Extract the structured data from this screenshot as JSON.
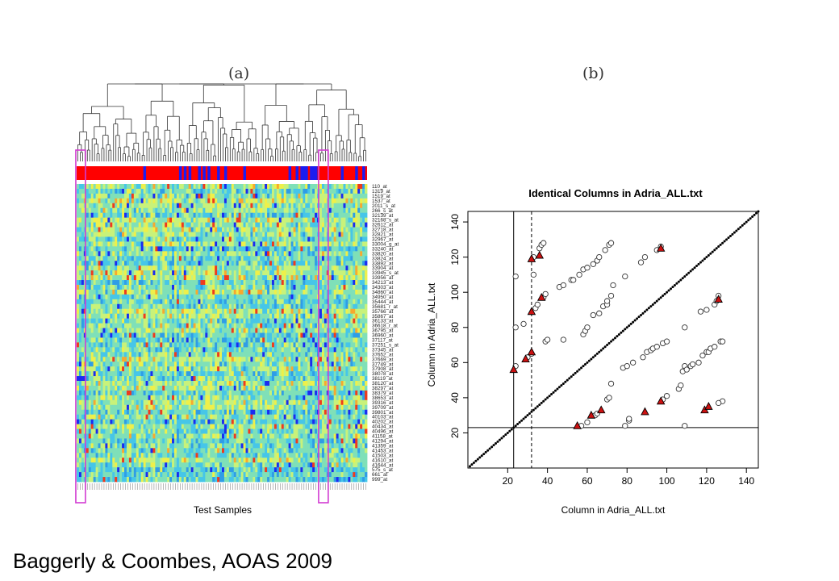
{
  "panels": {
    "a_label": "(a)",
    "b_label": "(b)"
  },
  "citation": "Baggerly & Coombes, AOAS 2009",
  "colors": {
    "class_red": "#ff0000",
    "class_blue": "#1c1cf0",
    "highlight_box": "#d23cd2",
    "triangle_fill": "#cc1111"
  },
  "chart_data": [
    {
      "type": "heatmap",
      "xlabel": "Test Samples",
      "n_samples": 122,
      "highlighted_columns": [
        1,
        103
      ],
      "class_bar_blue_columns": [
        28,
        43,
        45,
        47,
        51,
        53,
        55,
        59,
        62,
        70,
        89,
        92,
        94,
        95,
        96,
        98,
        99,
        100,
        111,
        117,
        120
      ],
      "row_labels": [
        "110_at",
        "1319_at",
        "1519_at",
        "1537_at",
        "2011_s_at",
        "266_s_at",
        "32139_at",
        "32168_s_at",
        "32612_at",
        "32718_at",
        "32821_at",
        "32967_at",
        "33004_g_at",
        "33240_at",
        "33820_at",
        "33824_at",
        "33892_at",
        "33904_at",
        "33945_s_at",
        "33956_at",
        "34213_at",
        "34303_at",
        "34860_at",
        "34950_at",
        "35444_at",
        "35681_r_at",
        "35766_at",
        "35867_at",
        "36133_at",
        "36618_r_at",
        "36795_at",
        "36960_at",
        "37117_at",
        "37251_s_at",
        "37345_at",
        "37652_at",
        "37669_at",
        "37749_at",
        "37908_at",
        "38078_at",
        "38119_at",
        "38120_at",
        "38297_at",
        "38379_at",
        "38653_at",
        "39316_at",
        "39709_at",
        "39801_at",
        "40103_at",
        "40202_at",
        "40434_at",
        "40496_at",
        "41158_at",
        "41294_at",
        "41359_at",
        "41453_at",
        "41503_at",
        "41610_at",
        "41644_at",
        "575_s_at",
        "661_at",
        "999_at"
      ]
    },
    {
      "type": "scatter",
      "title": "Identical Columns in Adria_ALL.txt",
      "xlabel": "Column in Adria_ALL.txt",
      "ylabel": "Column in Adria_ALL.txt",
      "xlim": [
        0,
        146
      ],
      "ylim": [
        0,
        146
      ],
      "xticks": [
        20,
        40,
        60,
        80,
        100,
        120,
        140
      ],
      "yticks": [
        20,
        40,
        60,
        80,
        100,
        120,
        140
      ],
      "diagonal": {
        "from": 1,
        "to": 146
      },
      "vlines_solid": [
        23
      ],
      "vlines_dashed": [
        32
      ],
      "hlines_solid": [
        23
      ],
      "circles": [
        [
          24,
          109
        ],
        [
          24,
          58
        ],
        [
          24,
          80
        ],
        [
          28,
          82
        ],
        [
          30,
          63
        ],
        [
          32,
          65
        ],
        [
          33,
          110
        ],
        [
          33,
          120
        ],
        [
          34,
          91
        ],
        [
          35,
          93
        ],
        [
          36,
          125
        ],
        [
          37,
          127
        ],
        [
          38,
          128
        ],
        [
          38,
          97
        ],
        [
          39,
          99
        ],
        [
          39,
          72
        ],
        [
          40,
          73
        ],
        [
          46,
          103
        ],
        [
          48,
          104
        ],
        [
          48,
          73
        ],
        [
          52,
          107
        ],
        [
          53,
          107
        ],
        [
          56,
          110
        ],
        [
          58,
          113
        ],
        [
          58,
          76
        ],
        [
          59,
          78
        ],
        [
          60,
          80
        ],
        [
          60,
          114
        ],
        [
          63,
          116
        ],
        [
          63,
          87
        ],
        [
          65,
          118
        ],
        [
          66,
          88
        ],
        [
          66,
          120
        ],
        [
          68,
          92
        ],
        [
          69,
          124
        ],
        [
          70,
          93
        ],
        [
          70,
          95
        ],
        [
          71,
          127
        ],
        [
          72,
          128
        ],
        [
          72,
          98
        ],
        [
          73,
          104
        ],
        [
          57,
          24
        ],
        [
          60,
          26
        ],
        [
          64,
          30
        ],
        [
          65,
          31
        ],
        [
          70,
          39
        ],
        [
          71,
          40
        ],
        [
          72,
          48
        ],
        [
          79,
          109
        ],
        [
          78,
          57
        ],
        [
          79,
          24
        ],
        [
          80,
          58
        ],
        [
          81,
          27
        ],
        [
          81,
          28
        ],
        [
          83,
          60
        ],
        [
          87,
          117
        ],
        [
          88,
          63
        ],
        [
          89,
          120
        ],
        [
          90,
          66
        ],
        [
          92,
          67
        ],
        [
          93,
          68
        ],
        [
          95,
          69
        ],
        [
          95,
          124
        ],
        [
          97,
          126
        ],
        [
          98,
          71
        ],
        [
          98,
          39
        ],
        [
          100,
          41
        ],
        [
          100,
          72
        ],
        [
          106,
          45
        ],
        [
          107,
          47
        ],
        [
          108,
          55
        ],
        [
          109,
          24
        ],
        [
          109,
          58
        ],
        [
          109,
          80
        ],
        [
          110,
          56
        ],
        [
          112,
          58
        ],
        [
          113,
          59
        ],
        [
          116,
          60
        ],
        [
          117,
          89
        ],
        [
          118,
          64
        ],
        [
          120,
          66
        ],
        [
          120,
          90
        ],
        [
          121,
          66
        ],
        [
          122,
          68
        ],
        [
          124,
          93
        ],
        [
          124,
          69
        ],
        [
          125,
          95
        ],
        [
          126,
          98
        ],
        [
          127,
          72
        ],
        [
          128,
          72
        ],
        [
          128,
          38
        ],
        [
          126,
          37
        ]
      ],
      "triangles": [
        [
          23,
          56
        ],
        [
          29,
          62
        ],
        [
          32,
          66
        ],
        [
          32,
          89
        ],
        [
          32,
          119
        ],
        [
          36,
          121
        ],
        [
          37,
          97
        ],
        [
          55,
          24
        ],
        [
          62,
          30
        ],
        [
          67,
          33
        ],
        [
          89,
          32
        ],
        [
          97,
          38
        ],
        [
          97,
          125
        ],
        [
          119,
          33
        ],
        [
          121,
          35
        ],
        [
          126,
          96
        ]
      ]
    }
  ]
}
